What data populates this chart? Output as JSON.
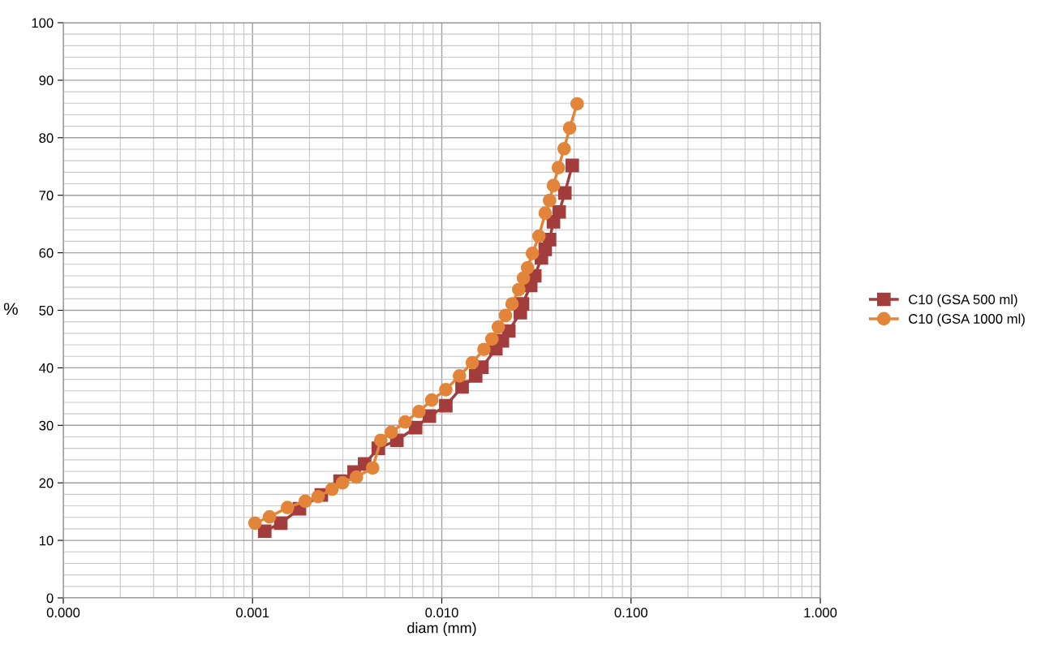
{
  "chart_data": {
    "type": "line",
    "xlabel": "diam (mm)",
    "ylabel": "%",
    "log": "x",
    "grid": true,
    "legend": "right",
    "xlim": [
      0.0001,
      1
    ],
    "xticks": [
      {
        "value": 0.0001,
        "label": "0.000"
      },
      {
        "value": 0.001,
        "label": "0.001"
      },
      {
        "value": 0.01,
        "label": "0.010"
      },
      {
        "value": 0.1,
        "label": "0.100"
      },
      {
        "value": 1,
        "label": "1.000"
      }
    ],
    "ylim": [
      0,
      100
    ],
    "yticks": [
      0,
      10,
      20,
      30,
      40,
      50,
      60,
      70,
      80,
      90,
      100
    ],
    "series": [
      {
        "name": "C10 (GSA 500 ml)",
        "color": "#a33d3d",
        "marker": "square",
        "x": [
          0.00116,
          0.00141,
          0.00177,
          0.00231,
          0.0029,
          0.00344,
          0.00391,
          0.00462,
          0.00579,
          0.00727,
          0.0086,
          0.0105,
          0.0128,
          0.0151,
          0.0163,
          0.0193,
          0.0209,
          0.0226,
          0.026,
          0.0267,
          0.0295,
          0.031,
          0.0336,
          0.0352,
          0.0371,
          0.0389,
          0.0417,
          0.0447,
          0.0489
        ],
        "values": [
          11.6,
          13.0,
          15.5,
          17.9,
          20.3,
          21.9,
          23.3,
          26.0,
          27.4,
          29.6,
          31.6,
          33.4,
          36.7,
          38.6,
          40.1,
          43.3,
          44.7,
          46.4,
          49.6,
          51.1,
          54.3,
          56.0,
          59.1,
          60.6,
          62.3,
          65.4,
          67.1,
          70.4,
          75.2
        ]
      },
      {
        "name": "C10 (GSA 1000 ml)",
        "color": "#e2853a",
        "marker": "circle",
        "x": [
          0.00103,
          0.00123,
          0.00153,
          0.0019,
          0.00222,
          0.00263,
          0.00299,
          0.00354,
          0.00431,
          0.00476,
          0.00541,
          0.0064,
          0.00757,
          0.00885,
          0.0105,
          0.0124,
          0.0145,
          0.0167,
          0.0184,
          0.0199,
          0.0217,
          0.0235,
          0.0255,
          0.027,
          0.0284,
          0.0301,
          0.0326,
          0.0352,
          0.0371,
          0.0389,
          0.0413,
          0.0443,
          0.0474,
          0.0519
        ],
        "values": [
          13.0,
          14.1,
          15.7,
          16.8,
          17.6,
          18.9,
          20.0,
          21.0,
          22.6,
          27.4,
          28.8,
          30.6,
          32.4,
          34.4,
          36.2,
          38.6,
          40.9,
          43.2,
          45.0,
          47.1,
          49.1,
          51.1,
          53.6,
          55.6,
          57.4,
          59.9,
          62.9,
          66.9,
          69.1,
          71.7,
          74.8,
          78.1,
          81.7,
          85.9
        ]
      }
    ]
  }
}
